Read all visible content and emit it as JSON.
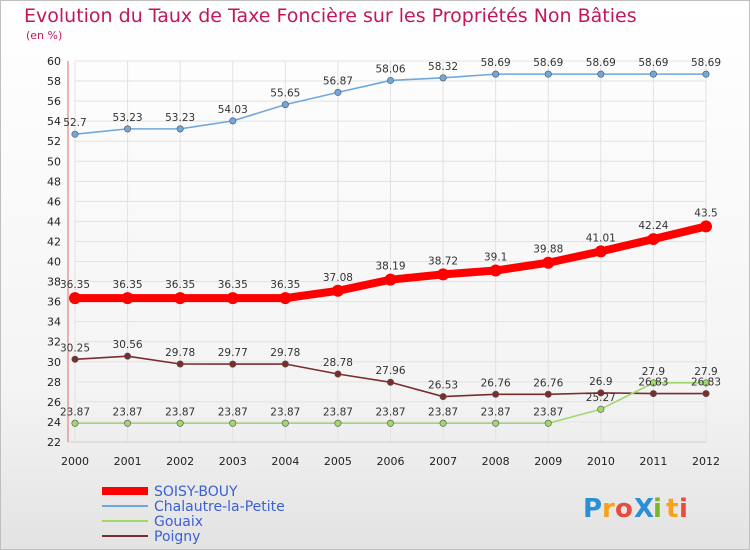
{
  "chart_data": {
    "type": "line",
    "title": "Evolution du Taux de Taxe Foncière sur les Propriétés Non Bâties",
    "subtitle": "(en %)",
    "xlabel": "",
    "ylabel": "",
    "ylim": [
      22,
      60
    ],
    "yticks": [
      22,
      24,
      26,
      28,
      30,
      32,
      34,
      36,
      38,
      40,
      42,
      44,
      46,
      48,
      50,
      52,
      54,
      56,
      58,
      60
    ],
    "x": [
      "2000",
      "2001",
      "2002",
      "2003",
      "2004",
      "2005",
      "2006",
      "2007",
      "2008",
      "2009",
      "2010",
      "2011",
      "2012"
    ],
    "grid": true,
    "legend_position": "bottom-left",
    "series": [
      {
        "name": "SOISY-BOUY",
        "color": "#ff0000",
        "values": [
          36.35,
          36.35,
          36.35,
          36.35,
          36.35,
          37.08,
          38.19,
          38.72,
          39.1,
          39.88,
          41.01,
          42.24,
          43.5
        ],
        "labels": [
          "36.35",
          "36.35",
          "36.35",
          "36.35",
          "36.35",
          "37.08",
          "38.19",
          "38.72",
          "39.1",
          "39.88",
          "41.01",
          "42.24",
          "43.5"
        ]
      },
      {
        "name": "Chalautre-la-Petite",
        "color": "#6fa8dc",
        "values": [
          52.7,
          53.23,
          53.23,
          54.03,
          55.65,
          56.87,
          58.06,
          58.32,
          58.69,
          58.69,
          58.69,
          58.69,
          58.69
        ],
        "labels": [
          "52.7",
          "53.23",
          "53.23",
          "54.03",
          "55.65",
          "56.87",
          "58.06",
          "58.32",
          "58.69",
          "58.69",
          "58.69",
          "58.69",
          "58.69"
        ]
      },
      {
        "name": "Gouaix",
        "color": "#9fd86b",
        "values": [
          23.87,
          23.87,
          23.87,
          23.87,
          23.87,
          23.87,
          23.87,
          23.87,
          23.87,
          23.87,
          25.27,
          27.9,
          27.9
        ],
        "labels": [
          "23.87",
          "23.87",
          "23.87",
          "23.87",
          "23.87",
          "23.87",
          "23.87",
          "23.87",
          "23.87",
          "23.87",
          "25.27",
          "27.9",
          "27.9"
        ]
      },
      {
        "name": "Poigny",
        "color": "#7b2d2d",
        "values": [
          30.25,
          30.56,
          29.78,
          29.77,
          29.78,
          28.78,
          27.96,
          26.53,
          26.76,
          26.76,
          26.9,
          26.83,
          26.83
        ],
        "labels": [
          "30.25",
          "30.56",
          "29.78",
          "29.77",
          "29.78",
          "28.78",
          "27.96",
          "26.53",
          "26.76",
          "26.76",
          "26.9",
          "26.83",
          "26.83"
        ]
      }
    ]
  },
  "logo": {
    "text": "ProXiti",
    "letters": [
      "P",
      "r",
      "o",
      "X",
      "i",
      "t",
      "i"
    ],
    "colors": [
      "#2b8fd6",
      "#f7a21b",
      "#e94b3c",
      "#2b8fd6",
      "#76b82a",
      "#f7a21b",
      "#e94b3c"
    ]
  }
}
